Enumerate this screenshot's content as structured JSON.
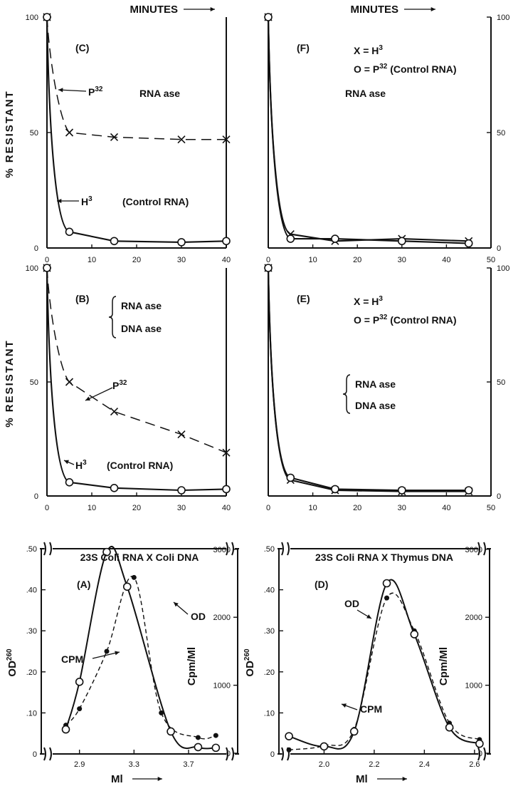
{
  "figure": {
    "top_label": "MINUTES",
    "resistant_label": "% RESISTANT",
    "od_label": "OD",
    "od_sup": "260",
    "cpm_axis_label": "Cpm/Ml",
    "ml_label": "Ml"
  },
  "chart_data": [
    {
      "id": "C",
      "type": "line",
      "panel_label": "(C)",
      "x_range": [
        0,
        40
      ],
      "x_ticks": [
        0,
        10,
        20,
        30,
        40
      ],
      "y_range": [
        0,
        100
      ],
      "y_ticks": [
        0,
        50,
        100
      ],
      "annotations": {
        "enzyme": [
          "RNA ase"
        ],
        "p32": "P",
        "p32_sup": "32",
        "h3": "H",
        "h3_sup": "3",
        "control": "(Control RNA)"
      },
      "series": [
        {
          "name": "P32",
          "style": "dashed",
          "marker": "x",
          "x": [
            0,
            5,
            15,
            30,
            40
          ],
          "y": [
            100,
            50,
            48,
            47,
            47
          ]
        },
        {
          "name": "H3 (Control RNA)",
          "style": "solid",
          "marker": "open-circle",
          "x": [
            0,
            5,
            15,
            30,
            40
          ],
          "y": [
            100,
            7,
            3,
            2.5,
            3
          ]
        }
      ]
    },
    {
      "id": "F",
      "type": "line",
      "panel_label": "(F)",
      "x_range": [
        0,
        50
      ],
      "x_ticks": [
        0,
        10,
        20,
        30,
        40,
        50
      ],
      "y_range": [
        0,
        100
      ],
      "y_ticks": [
        0,
        50,
        100
      ],
      "annotations": {
        "enzyme": [
          "RNA ase"
        ],
        "legend_x": "X = H",
        "legend_x_sup": "3",
        "legend_o": "O = P",
        "legend_o_sup": "32",
        "legend_o_tail": " (Control RNA)"
      },
      "series": [
        {
          "name": "H3",
          "style": "solid",
          "marker": "x",
          "x": [
            0,
            5,
            15,
            30,
            45
          ],
          "y": [
            100,
            6,
            3,
            4,
            3
          ]
        },
        {
          "name": "P32 (Control RNA)",
          "style": "solid",
          "marker": "open-circle",
          "x": [
            0,
            5,
            15,
            30,
            45
          ],
          "y": [
            100,
            4,
            4,
            3,
            2
          ]
        }
      ]
    },
    {
      "id": "B",
      "type": "line",
      "panel_label": "(B)",
      "x_range": [
        0,
        40
      ],
      "x_ticks": [
        0,
        10,
        20,
        30,
        40
      ],
      "y_range": [
        0,
        100
      ],
      "y_ticks": [
        0,
        50,
        100
      ],
      "annotations": {
        "enzyme": [
          "RNA ase",
          "DNA ase"
        ],
        "p32": "P",
        "p32_sup": "32",
        "h3": "H",
        "h3_sup": "3",
        "control": "(Control RNA)"
      },
      "series": [
        {
          "name": "P32",
          "style": "dashed",
          "marker": "x",
          "x": [
            0,
            5,
            15,
            30,
            40
          ],
          "y": [
            100,
            50,
            37,
            27,
            19
          ]
        },
        {
          "name": "H3 (Control RNA)",
          "style": "solid",
          "marker": "open-circle",
          "x": [
            0,
            5,
            15,
            30,
            40
          ],
          "y": [
            100,
            6,
            3.5,
            2.5,
            3
          ]
        }
      ]
    },
    {
      "id": "E",
      "type": "line",
      "panel_label": "(E)",
      "x_range": [
        0,
        50
      ],
      "x_ticks": [
        0,
        10,
        20,
        30,
        40,
        50
      ],
      "y_range": [
        0,
        100
      ],
      "y_ticks": [
        0,
        50,
        100
      ],
      "annotations": {
        "enzyme": [
          "RNA ase",
          "DNA ase"
        ],
        "legend_x": "X = H",
        "legend_x_sup": "3",
        "legend_o": "O = P",
        "legend_o_sup": "32",
        "legend_o_tail": " (Control RNA)"
      },
      "series": [
        {
          "name": "H3",
          "style": "solid",
          "marker": "x",
          "x": [
            0,
            5,
            15,
            30,
            45
          ],
          "y": [
            100,
            7,
            2.5,
            2,
            2
          ]
        },
        {
          "name": "P32 (Control RNA)",
          "style": "solid",
          "marker": "open-circle",
          "x": [
            0,
            5,
            15,
            30,
            45
          ],
          "y": [
            100,
            8,
            3,
            2.5,
            2.5
          ]
        }
      ]
    },
    {
      "id": "A",
      "type": "line",
      "panel_label": "(A)",
      "title": "23S Coli RNA X Coli DNA",
      "x_range": [
        2.62,
        4.06
      ],
      "x_ticks": [
        2.9,
        3.3,
        3.7
      ],
      "x_tick_labels": [
        "2.9",
        "3.3",
        "3.7"
      ],
      "y_range": [
        0,
        0.5
      ],
      "y_ticks": [
        0,
        0.1,
        0.2,
        0.3,
        0.4,
        0.5
      ],
      "y_tick_labels": [
        "0",
        ".10",
        ".20",
        ".30",
        ".40",
        ".50"
      ],
      "y2_ticks": [
        0,
        1000,
        2000,
        3000
      ],
      "y2_tick_labels": [
        "0",
        "1000",
        "2000",
        "3000"
      ],
      "annotations": {
        "od": "OD",
        "cpm": "CPM"
      },
      "series": [
        {
          "name": "OD",
          "style": "dashed",
          "marker": "filled-circle",
          "axis": "left",
          "x": [
            2.8,
            2.9,
            3.1,
            3.3,
            3.5,
            3.77,
            3.9
          ],
          "y": [
            0.07,
            0.11,
            0.25,
            0.43,
            0.1,
            0.04,
            0.045
          ]
        },
        {
          "name": "CPM",
          "style": "solid",
          "marker": "open-circle",
          "axis": "right",
          "x": [
            2.8,
            2.9,
            3.1,
            3.25,
            3.57,
            3.77,
            3.9
          ],
          "y": [
            350,
            1050,
            2960,
            2450,
            320,
            90,
            80
          ]
        }
      ]
    },
    {
      "id": "D",
      "type": "line",
      "panel_label": "(D)",
      "title": "23S Coli RNA X Thymus DNA",
      "x_range": [
        1.82,
        2.66
      ],
      "x_ticks": [
        2.0,
        2.2,
        2.4,
        2.6
      ],
      "x_tick_labels": [
        "2.0",
        "2.2",
        "2.4",
        "2.6"
      ],
      "y_range": [
        0,
        0.5
      ],
      "y_ticks": [
        0,
        0.1,
        0.2,
        0.3,
        0.4,
        0.5
      ],
      "y_tick_labels": [
        "0",
        ".10",
        ".20",
        ".30",
        ".40",
        ".50"
      ],
      "y2_ticks": [
        0,
        1000,
        2000,
        3000
      ],
      "y2_tick_labels": [
        "0",
        "1000",
        "2000",
        "3000"
      ],
      "annotations": {
        "od": "OD",
        "cpm": "CPM"
      },
      "series": [
        {
          "name": "OD",
          "style": "dashed",
          "marker": "filled-circle",
          "axis": "left",
          "x": [
            1.86,
            2.0,
            2.12,
            2.25,
            2.36,
            2.5,
            2.62
          ],
          "y": [
            0.01,
            0.02,
            0.06,
            0.38,
            0.3,
            0.075,
            0.035
          ]
        },
        {
          "name": "CPM",
          "style": "solid",
          "marker": "open-circle",
          "axis": "right",
          "x": [
            1.86,
            2.0,
            2.12,
            2.25,
            2.36,
            2.5,
            2.62
          ],
          "y": [
            250,
            100,
            320,
            2500,
            1750,
            380,
            140
          ]
        }
      ]
    }
  ]
}
